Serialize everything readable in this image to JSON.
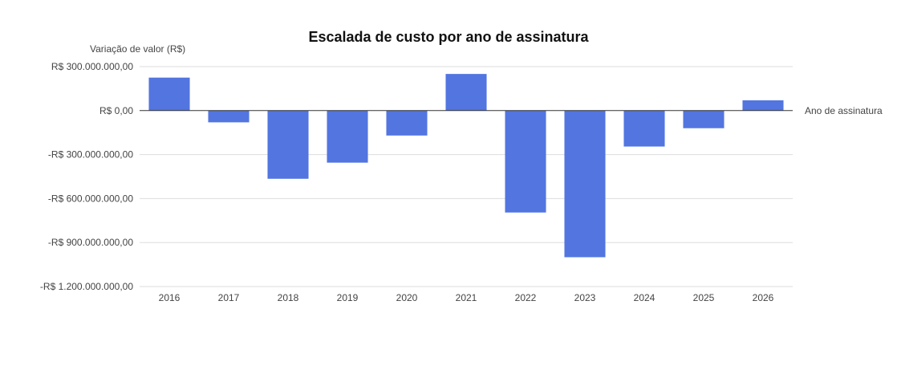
{
  "chart_data": {
    "type": "bar",
    "title": "Escalada de custo por ano de assinatura",
    "xlabel": "Ano de assinatura",
    "ylabel": "Variação de valor (R$)",
    "categories": [
      "2016",
      "2017",
      "2018",
      "2019",
      "2020",
      "2021",
      "2022",
      "2023",
      "2024",
      "2025",
      "2026"
    ],
    "values": [
      225000000,
      -80000000,
      -465000000,
      -355000000,
      -170000000,
      250000000,
      -695000000,
      -1000000000,
      -245000000,
      -120000000,
      70000000
    ],
    "ylim": [
      -1200000000,
      300000000
    ],
    "yticks": [
      300000000,
      0,
      -300000000,
      -600000000,
      -900000000,
      -1200000000
    ],
    "ytick_labels": [
      "R$ 300.000.000,00",
      "R$ 0,00",
      "-R$ 300.000.000,00",
      "-R$ 600.000.000,00",
      "-R$ 900.000.000,00",
      "-R$ 1.200.000.000,00"
    ],
    "bar_color": "#5275e0",
    "grid": true,
    "legend": "none"
  }
}
